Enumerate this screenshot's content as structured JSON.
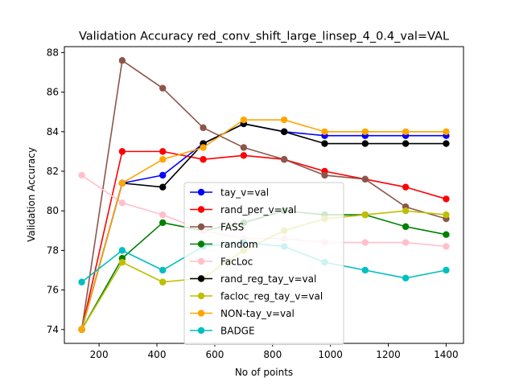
{
  "chart_data": {
    "type": "line",
    "title": "Validation Accuracy red_conv_shift_large_linsep_4_0.4_val=VAL",
    "xlabel": "No of points",
    "ylabel": "Validation Accuracy",
    "xlim": [
      80,
      1460
    ],
    "ylim": [
      73.3,
      88.3
    ],
    "xticks": [
      200,
      400,
      600,
      800,
      1000,
      1200,
      1400
    ],
    "yticks": [
      74,
      76,
      78,
      80,
      82,
      84,
      86,
      88
    ],
    "grid": false,
    "legend_position": "center",
    "x": [
      140,
      280,
      420,
      560,
      700,
      840,
      980,
      1120,
      1260,
      1400
    ],
    "series": [
      {
        "name": "tay_v=val",
        "color": "#0000ff",
        "values": [
          74.0,
          81.4,
          81.8,
          83.4,
          84.4,
          84.0,
          83.8,
          83.8,
          83.8,
          83.8
        ]
      },
      {
        "name": "rand_per_v=val",
        "color": "#ff0000",
        "values": [
          74.0,
          83.0,
          83.0,
          82.6,
          82.8,
          82.6,
          82.0,
          81.6,
          81.2,
          80.6
        ]
      },
      {
        "name": "FASS",
        "color": "#8c564b",
        "values": [
          74.0,
          87.6,
          86.2,
          84.2,
          83.2,
          82.6,
          81.8,
          81.6,
          80.2,
          79.6
        ]
      },
      {
        "name": "random",
        "color": "#008000",
        "values": [
          74.0,
          77.6,
          79.4,
          79.0,
          79.4,
          80.0,
          79.8,
          79.8,
          79.2,
          78.8
        ]
      },
      {
        "name": "FacLoc",
        "color": "#ffc0cb",
        "values": [
          81.8,
          80.4,
          79.8,
          79.0,
          78.6,
          78.6,
          78.4,
          78.4,
          78.4,
          78.2
        ]
      },
      {
        "name": "rand_reg_tay_v=val",
        "color": "#000000",
        "values": [
          74.0,
          81.4,
          81.2,
          83.4,
          84.4,
          84.0,
          83.4,
          83.4,
          83.4,
          83.4
        ]
      },
      {
        "name": "facloc_reg_tay_v=val",
        "color": "#bfbf00",
        "values": [
          74.0,
          77.4,
          76.4,
          76.6,
          78.0,
          79.0,
          79.6,
          79.8,
          80.0,
          79.8
        ]
      },
      {
        "name": "NON-tay_v=val",
        "color": "#ffa500",
        "values": [
          74.0,
          81.4,
          82.6,
          83.2,
          84.6,
          84.6,
          84.0,
          84.0,
          84.0,
          84.0
        ]
      },
      {
        "name": "BADGE",
        "color": "#00bfbf",
        "values": [
          76.4,
          78.0,
          77.0,
          78.2,
          78.4,
          78.2,
          77.4,
          77.0,
          76.6,
          77.0
        ]
      }
    ]
  }
}
